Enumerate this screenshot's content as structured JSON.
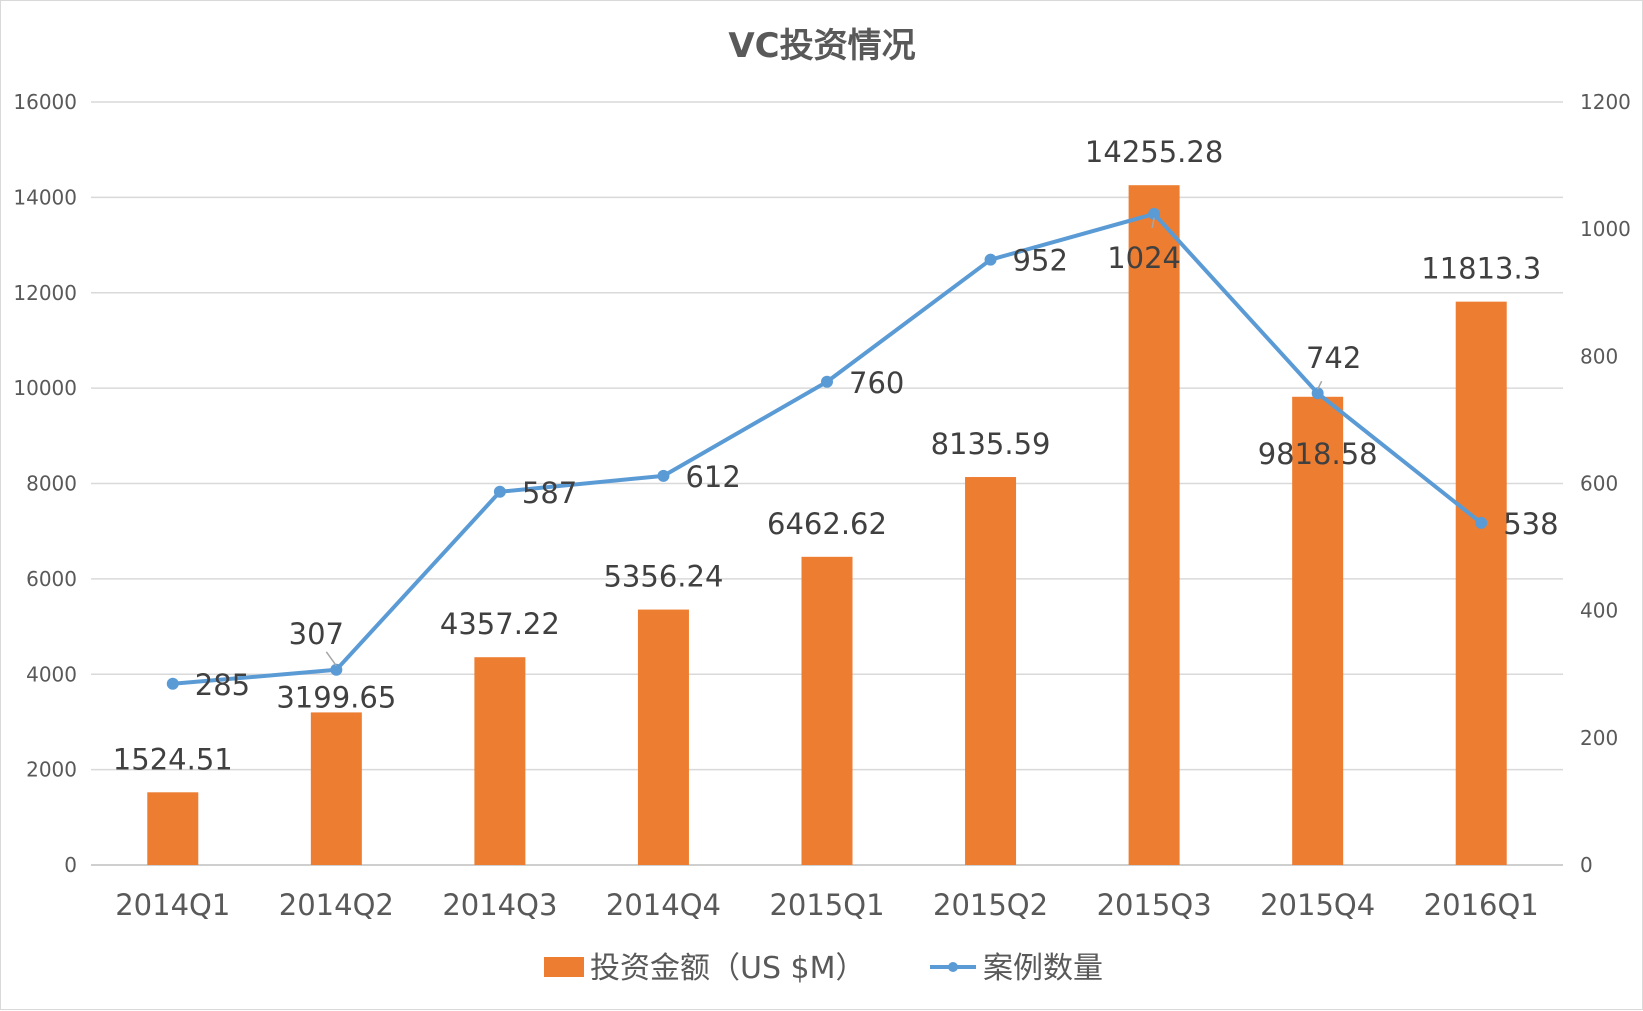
{
  "chart_data": {
    "type": "bar",
    "title": "VC投资情况",
    "categories": [
      "2014Q1",
      "2014Q2",
      "2014Q3",
      "2014Q4",
      "2015Q1",
      "2015Q2",
      "2015Q3",
      "2015Q4",
      "2016Q1"
    ],
    "series": [
      {
        "name": "投资金额（US $M）",
        "type": "bar",
        "axis": "left",
        "color": "#ED7D31",
        "values": [
          1524.51,
          3199.65,
          4357.22,
          5356.24,
          6462.62,
          8135.59,
          14255.28,
          9818.58,
          11813.3
        ],
        "labels": [
          "1524.51",
          "3199.65",
          "4357.22",
          "5356.24",
          "6462.62",
          "8135.59",
          "14255.28",
          "9818.58",
          "11813.3"
        ]
      },
      {
        "name": "案例数量",
        "type": "line",
        "axis": "right",
        "color": "#5B9BD5",
        "values": [
          285,
          307,
          587,
          612,
          760,
          952,
          1024,
          742,
          538
        ],
        "labels": [
          "285",
          "307",
          "587",
          "612",
          "760",
          "952",
          "1024",
          "742",
          "538"
        ]
      }
    ],
    "y_left": {
      "range": [
        0,
        16000
      ],
      "ticks": [
        "0",
        "2000",
        "4000",
        "6000",
        "8000",
        "10000",
        "12000",
        "14000",
        "16000"
      ]
    },
    "y_right": {
      "range": [
        0,
        1200
      ],
      "ticks": [
        "0",
        "200",
        "400",
        "600",
        "800",
        "1000",
        "1200"
      ]
    },
    "grid": true,
    "legend_position": "bottom"
  }
}
